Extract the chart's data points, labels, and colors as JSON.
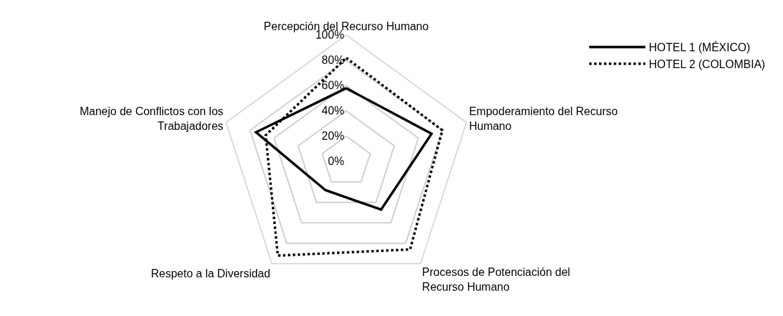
{
  "chart_data": {
    "type": "radar",
    "categories": [
      "Percepción del Recurso Humano",
      "Empoderamiento del Recurso\nHumano",
      "Procesos de Potenciación del\nRecurso Humano",
      "Respeto a la Diversidad",
      "Manejo de Conflictos con los\nTrabajadores"
    ],
    "series": [
      {
        "name": "HOTEL 1 (MÉXICO)",
        "color": "#000000",
        "line_style": "solid",
        "values": [
          58,
          71,
          47,
          28,
          75
        ]
      },
      {
        "name": "HOTEL 2 (COLOMBIA)",
        "color": "#000000",
        "line_style": "dotted",
        "values": [
          82,
          80,
          86,
          92,
          67
        ]
      }
    ],
    "ylim": [
      0,
      100
    ],
    "yticks": [
      {
        "value": 0,
        "label": "0%"
      },
      {
        "value": 20,
        "label": "20%"
      },
      {
        "value": 40,
        "label": "40%"
      },
      {
        "value": 60,
        "label": "60%"
      },
      {
        "value": 80,
        "label": "80%"
      },
      {
        "value": 100,
        "label": "100%"
      }
    ],
    "grid": true,
    "legend": "top right",
    "marker": "none"
  }
}
